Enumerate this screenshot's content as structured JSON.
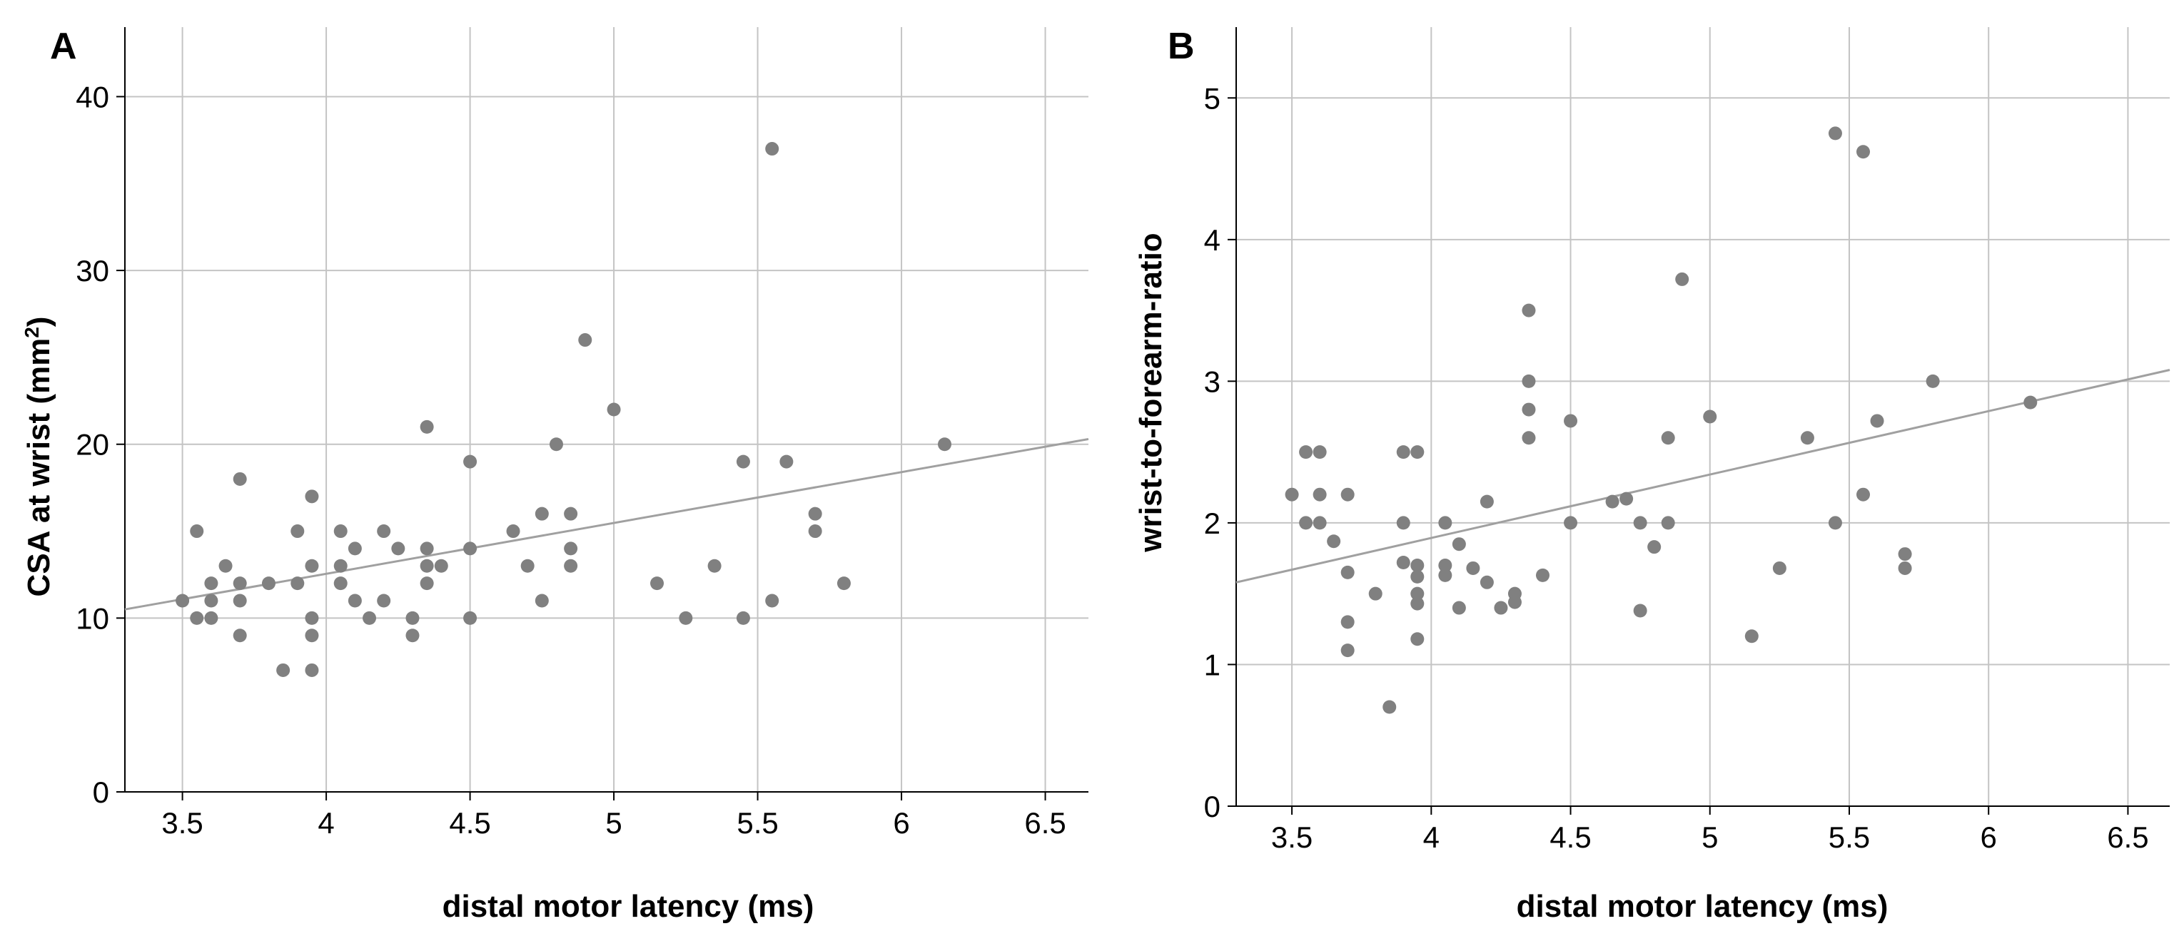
{
  "chart_data": [
    {
      "panel_label": "A",
      "type": "scatter",
      "xlabel": "distal motor latency (ms)",
      "ylabel_text": "CSA at wrist (mm",
      "ylabel_sup": "2",
      "ylabel_close": ")",
      "xlim": [
        3.3,
        6.65
      ],
      "ylim": [
        0,
        44
      ],
      "xticks": [
        3.5,
        4,
        4.5,
        5,
        5.5,
        6,
        6.5
      ],
      "xtick_labels": [
        "3.5",
        "4",
        "4.5",
        "5",
        "5.5",
        "6",
        "6.5"
      ],
      "yticks": [
        0,
        10,
        20,
        30,
        40
      ],
      "ytick_labels": [
        "0",
        "10",
        "20",
        "30",
        "40"
      ],
      "grid": true,
      "marker_color": "#808080",
      "fit_line_color": "#a0a0a0",
      "fit_line": {
        "x": [
          3.3,
          6.65
        ],
        "y": [
          10.5,
          20.3
        ]
      },
      "points": [
        [
          3.5,
          11
        ],
        [
          3.55,
          15
        ],
        [
          3.55,
          10
        ],
        [
          3.6,
          12
        ],
        [
          3.6,
          11
        ],
        [
          3.6,
          10
        ],
        [
          3.65,
          13
        ],
        [
          3.7,
          18
        ],
        [
          3.7,
          12
        ],
        [
          3.7,
          11
        ],
        [
          3.7,
          9
        ],
        [
          3.8,
          12
        ],
        [
          3.85,
          7
        ],
        [
          3.9,
          15
        ],
        [
          3.9,
          12
        ],
        [
          3.95,
          17
        ],
        [
          3.95,
          13
        ],
        [
          3.95,
          10
        ],
        [
          3.95,
          9
        ],
        [
          3.95,
          7
        ],
        [
          4.05,
          15
        ],
        [
          4.05,
          13
        ],
        [
          4.05,
          12
        ],
        [
          4.1,
          14
        ],
        [
          4.1,
          11
        ],
        [
          4.15,
          10
        ],
        [
          4.2,
          15
        ],
        [
          4.2,
          11
        ],
        [
          4.25,
          14
        ],
        [
          4.3,
          10
        ],
        [
          4.3,
          9
        ],
        [
          4.35,
          21
        ],
        [
          4.35,
          14
        ],
        [
          4.35,
          13
        ],
        [
          4.35,
          12
        ],
        [
          4.4,
          13
        ],
        [
          4.5,
          19
        ],
        [
          4.5,
          14
        ],
        [
          4.5,
          10
        ],
        [
          4.65,
          15
        ],
        [
          4.7,
          13
        ],
        [
          4.75,
          16
        ],
        [
          4.75,
          11
        ],
        [
          4.8,
          20
        ],
        [
          4.85,
          16
        ],
        [
          4.85,
          14
        ],
        [
          4.85,
          13
        ],
        [
          4.9,
          26
        ],
        [
          5.0,
          22
        ],
        [
          5.15,
          12
        ],
        [
          5.25,
          10
        ],
        [
          5.35,
          13
        ],
        [
          5.45,
          19
        ],
        [
          5.45,
          10
        ],
        [
          5.55,
          37
        ],
        [
          5.55,
          11
        ],
        [
          5.6,
          19
        ],
        [
          5.7,
          16
        ],
        [
          5.7,
          15
        ],
        [
          5.8,
          12
        ],
        [
          6.15,
          20
        ]
      ]
    },
    {
      "panel_label": "B",
      "type": "scatter",
      "xlabel": "distal motor latency (ms)",
      "ylabel_text": "wrist-to-forearm-ratio",
      "ylabel_sup": "",
      "ylabel_close": "",
      "xlim": [
        3.3,
        6.65
      ],
      "ylim": [
        0,
        5.5
      ],
      "xticks": [
        3.5,
        4,
        4.5,
        5,
        5.5,
        6,
        6.5
      ],
      "xtick_labels": [
        "3.5",
        "4",
        "4.5",
        "5",
        "5.5",
        "6",
        "6.5"
      ],
      "yticks": [
        0,
        1,
        2,
        3,
        4,
        5
      ],
      "ytick_labels": [
        "0",
        "1",
        "2",
        "3",
        "4",
        "5"
      ],
      "grid": true,
      "marker_color": "#808080",
      "fit_line_color": "#a0a0a0",
      "fit_line": {
        "x": [
          3.3,
          6.65
        ],
        "y": [
          1.58,
          3.08
        ]
      },
      "points": [
        [
          3.5,
          2.2
        ],
        [
          3.55,
          2.5
        ],
        [
          3.55,
          2.0
        ],
        [
          3.6,
          2.5
        ],
        [
          3.6,
          2.2
        ],
        [
          3.6,
          2.0
        ],
        [
          3.65,
          1.87
        ],
        [
          3.7,
          2.2
        ],
        [
          3.7,
          1.65
        ],
        [
          3.7,
          1.3
        ],
        [
          3.7,
          1.1
        ],
        [
          3.8,
          1.5
        ],
        [
          3.85,
          0.7
        ],
        [
          3.9,
          2.5
        ],
        [
          3.9,
          2.0
        ],
        [
          3.9,
          1.72
        ],
        [
          3.95,
          2.5
        ],
        [
          3.95,
          1.7
        ],
        [
          3.95,
          1.62
        ],
        [
          3.95,
          1.5
        ],
        [
          3.95,
          1.43
        ],
        [
          3.95,
          1.18
        ],
        [
          4.05,
          2.0
        ],
        [
          4.05,
          1.7
        ],
        [
          4.05,
          1.63
        ],
        [
          4.1,
          1.85
        ],
        [
          4.1,
          1.4
        ],
        [
          4.15,
          1.68
        ],
        [
          4.2,
          2.15
        ],
        [
          4.2,
          1.58
        ],
        [
          4.25,
          1.4
        ],
        [
          4.3,
          1.5
        ],
        [
          4.3,
          1.44
        ],
        [
          4.35,
          3.5
        ],
        [
          4.35,
          3.0
        ],
        [
          4.35,
          2.8
        ],
        [
          4.35,
          2.6
        ],
        [
          4.4,
          1.63
        ],
        [
          4.5,
          2.72
        ],
        [
          4.5,
          2.0
        ],
        [
          4.65,
          2.15
        ],
        [
          4.7,
          2.17
        ],
        [
          4.75,
          2.0
        ],
        [
          4.75,
          1.38
        ],
        [
          4.8,
          1.83
        ],
        [
          4.85,
          2.6
        ],
        [
          4.85,
          2.0
        ],
        [
          4.9,
          3.72
        ],
        [
          5.0,
          2.75
        ],
        [
          5.15,
          1.2
        ],
        [
          5.25,
          1.68
        ],
        [
          5.35,
          2.6
        ],
        [
          5.45,
          4.75
        ],
        [
          5.45,
          2.0
        ],
        [
          5.55,
          4.62
        ],
        [
          5.55,
          2.2
        ],
        [
          5.6,
          2.72
        ],
        [
          5.7,
          1.78
        ],
        [
          5.7,
          1.68
        ],
        [
          5.8,
          3.0
        ],
        [
          6.15,
          2.85
        ]
      ]
    }
  ]
}
